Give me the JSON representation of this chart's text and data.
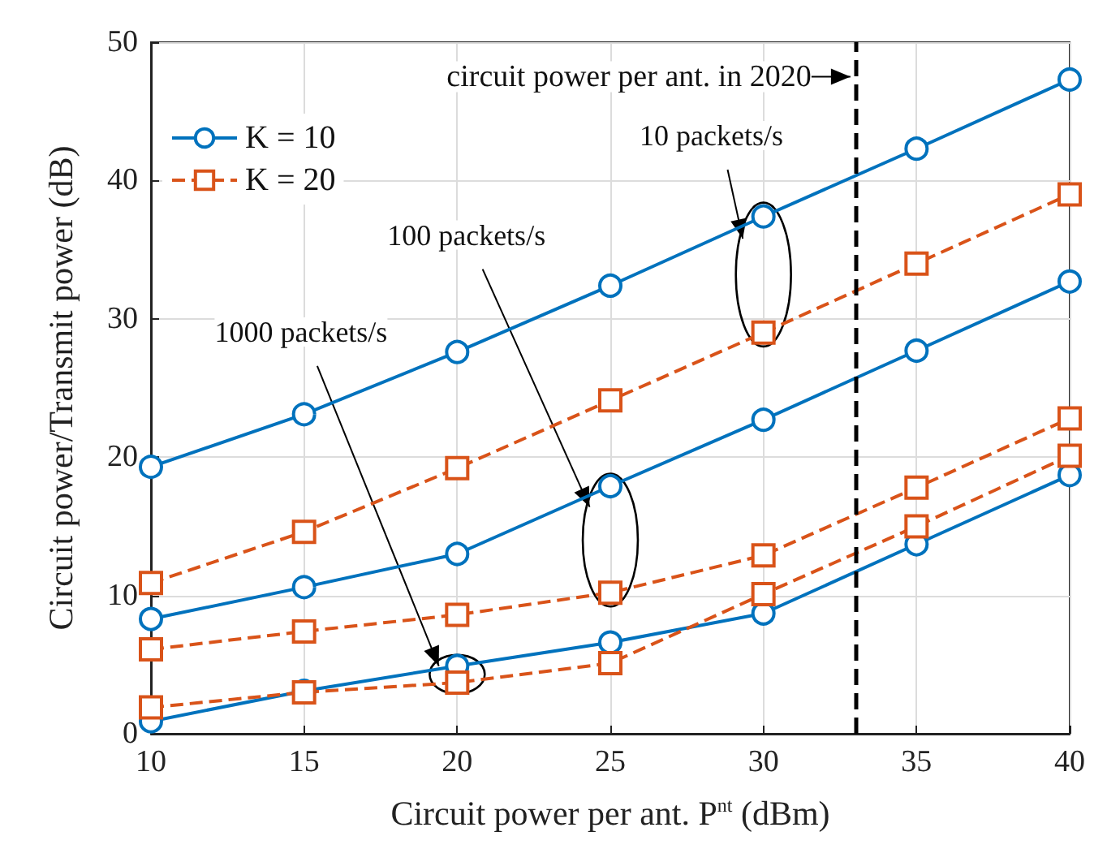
{
  "chart_data": {
    "type": "line",
    "xlabel": "Circuit power per ant. P$^{nt}$ (dBm)",
    "ylabel": "Circuit power/Transmit power (dB)",
    "x": [
      10,
      15,
      20,
      25,
      30,
      35,
      40
    ],
    "series": [
      {
        "name": "K = 10",
        "color": "#0072bd",
        "marker": "circle",
        "line_style": "solid",
        "values": [
          19.3,
          23.1,
          27.6,
          32.4,
          37.4,
          42.3,
          47.3
        ]
      },
      {
        "name": "K = 20",
        "color": "#d95319",
        "marker": "square",
        "line_style": "dashed",
        "values": [
          10.9,
          14.6,
          19.2,
          24.1,
          29.0,
          34.0,
          39.0
        ]
      },
      {
        "color": "#0072bd",
        "marker": "circle",
        "line_style": "solid",
        "values": [
          8.3,
          10.6,
          13.0,
          17.9,
          22.7,
          27.7,
          32.7
        ]
      },
      {
        "color": "#d95319",
        "marker": "square",
        "line_style": "dashed",
        "values": [
          6.1,
          7.4,
          8.6,
          10.2,
          12.9,
          17.8,
          22.8
        ]
      },
      {
        "color": "#0072bd",
        "marker": "circle",
        "line_style": "solid",
        "values": [
          0.9,
          3.1,
          4.9,
          6.6,
          8.7,
          13.7,
          18.7
        ]
      },
      {
        "color": "#d95319",
        "marker": "square",
        "line_style": "dashed",
        "values": [
          1.9,
          3.0,
          3.7,
          5.1,
          10.1,
          15.0,
          20.1
        ]
      }
    ],
    "xlim": [
      10,
      40
    ],
    "xticks": [
      10,
      15,
      20,
      25,
      30,
      35,
      40
    ],
    "ylim": [
      0,
      50
    ],
    "yticks": [
      0,
      10,
      20,
      30,
      40,
      50
    ],
    "grid": true,
    "legend": "top left",
    "ref_lines": [
      {
        "axis": "x",
        "value": 33,
        "label": "circuit power per ant. in 2020",
        "color": "#000000",
        "line_style": "dashed"
      }
    ],
    "annotations": [
      "10 packets/s",
      "100 packets/s",
      {
        "text": "1000 packets/s",
        "x": 19.4,
        "y": 4.9
      }
    ]
  }
}
